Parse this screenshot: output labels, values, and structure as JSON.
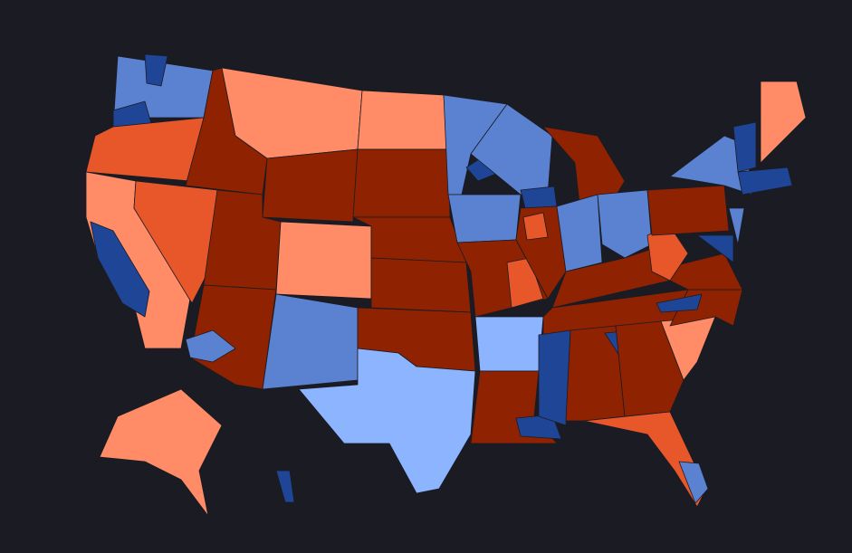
{
  "map": {
    "background": "#1b1b24",
    "border": "#1b1b24",
    "palette": [
      "#8f2200",
      "#e8572a",
      "#ff8c66",
      "#1f4596",
      "#5a82d0",
      "#8db4ff"
    ]
  }
}
